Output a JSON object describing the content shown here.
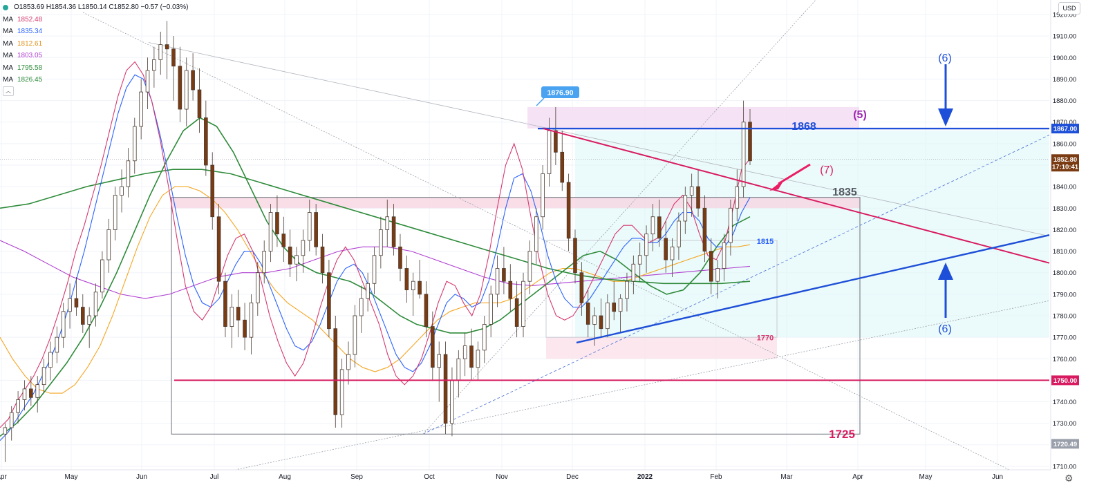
{
  "header": {
    "ohlc_text": "O1853.69 H1854.36 L1850.14 C1852.80 −0.57 (−0.03%)",
    "mas": [
      {
        "label": "MA",
        "value": "1852.48",
        "color": "#d5386f"
      },
      {
        "label": "MA",
        "value": "1835.34",
        "color": "#2962ff"
      },
      {
        "label": "MA",
        "value": "1812.61",
        "color": "#f5a623"
      },
      {
        "label": "MA",
        "value": "1803.05",
        "color": "#b03fd1"
      },
      {
        "label": "MA",
        "value": "1795.58",
        "color": "#2e8b3a"
      },
      {
        "label": "MA",
        "value": "1826.45",
        "color": "#2e8b3a"
      }
    ],
    "toggle_icon": "chevron-up-icon"
  },
  "currency_button": "USD",
  "settings_icon": "gear-icon",
  "chart_data": {
    "type": "candlestick",
    "instrument_currency": "USD",
    "y_axis": {
      "ticks": [
        1710,
        1720,
        1730,
        1740,
        1750,
        1760,
        1770,
        1780,
        1790,
        1800,
        1810,
        1820,
        1830,
        1840,
        1850,
        1860,
        1870,
        1880,
        1890,
        1900,
        1910,
        1920
      ],
      "tick_labels": [
        "1710.00",
        "1720.00",
        "1730.00",
        "1740.00",
        "1750.00",
        "1760.00",
        "1770.00",
        "1780.00",
        "1790.00",
        "1800.00",
        "1810.00",
        "1820.00",
        "1830.00",
        "1840.00",
        "1850.00",
        "1860.00",
        "1870.00",
        "1880.00",
        "1890.00",
        "1900.00",
        "1910.00",
        "1920.00"
      ],
      "range": [
        1707,
        1922
      ]
    },
    "x_axis": {
      "labels": [
        "Apr",
        "May",
        "Jun",
        "Jul",
        "Aug",
        "Sep",
        "Oct",
        "Nov",
        "Dec",
        "2022",
        "Feb",
        "Mar",
        "Apr",
        "May",
        "Jun"
      ]
    },
    "price_labels": [
      {
        "text": "1867.00",
        "value": 1867,
        "color": "#1e4fd8"
      },
      {
        "text": "1852.80",
        "value": 1852.8,
        "color": "#7a3b12"
      },
      {
        "text": "17:10:41",
        "value": 1849.3,
        "color": "#7a3b12"
      },
      {
        "text": "1750.00",
        "value": 1750,
        "color": "#d81b60"
      },
      {
        "text": "1720.49",
        "value": 1720.49,
        "color": "#9aa0ab"
      }
    ],
    "annotations": {
      "level_1868": "1868",
      "level_1835": "1835",
      "level_1815": "1815",
      "level_1770": "1770",
      "level_1725": "1725",
      "wave_5": "(5)",
      "wave_7": "(7)",
      "wave_6_top": "(6)",
      "wave_6_bottom": "(6)",
      "callout_high": "1876.90"
    },
    "horizontal_levels": [
      {
        "value": 1867,
        "color": "#1e4fd8"
      },
      {
        "value": 1750,
        "color": "#d81b60"
      }
    ],
    "candles": [
      [
        1725,
        1730,
        1712,
        1728
      ],
      [
        1728,
        1738,
        1722,
        1735
      ],
      [
        1735,
        1745,
        1730,
        1741
      ],
      [
        1741,
        1750,
        1736,
        1746
      ],
      [
        1746,
        1752,
        1738,
        1742
      ],
      [
        1742,
        1752,
        1735,
        1748
      ],
      [
        1748,
        1760,
        1744,
        1756
      ],
      [
        1756,
        1768,
        1750,
        1763
      ],
      [
        1763,
        1775,
        1758,
        1770
      ],
      [
        1770,
        1786,
        1765,
        1782
      ],
      [
        1782,
        1795,
        1774,
        1788
      ],
      [
        1788,
        1798,
        1780,
        1784
      ],
      [
        1784,
        1790,
        1772,
        1776
      ],
      [
        1776,
        1784,
        1765,
        1780
      ],
      [
        1780,
        1795,
        1775,
        1791
      ],
      [
        1791,
        1810,
        1788,
        1806
      ],
      [
        1806,
        1825,
        1800,
        1820
      ],
      [
        1820,
        1840,
        1815,
        1836
      ],
      [
        1836,
        1848,
        1828,
        1840
      ],
      [
        1840,
        1858,
        1835,
        1852
      ],
      [
        1852,
        1872,
        1846,
        1868
      ],
      [
        1868,
        1890,
        1862,
        1884
      ],
      [
        1884,
        1900,
        1876,
        1894
      ],
      [
        1894,
        1905,
        1886,
        1899
      ],
      [
        1899,
        1912,
        1892,
        1906
      ],
      [
        1906,
        1917,
        1890,
        1904
      ],
      [
        1904,
        1910,
        1880,
        1896
      ],
      [
        1896,
        1905,
        1870,
        1876
      ],
      [
        1876,
        1900,
        1868,
        1894
      ],
      [
        1894,
        1902,
        1880,
        1885
      ],
      [
        1885,
        1895,
        1865,
        1872
      ],
      [
        1872,
        1880,
        1845,
        1850
      ],
      [
        1850,
        1856,
        1820,
        1826
      ],
      [
        1826,
        1832,
        1790,
        1796
      ],
      [
        1796,
        1800,
        1770,
        1775
      ],
      [
        1775,
        1790,
        1765,
        1784
      ],
      [
        1784,
        1792,
        1770,
        1778
      ],
      [
        1778,
        1786,
        1764,
        1770
      ],
      [
        1770,
        1790,
        1762,
        1786
      ],
      [
        1786,
        1805,
        1780,
        1800
      ],
      [
        1800,
        1815,
        1795,
        1810
      ],
      [
        1810,
        1832,
        1805,
        1828
      ],
      [
        1828,
        1836,
        1812,
        1818
      ],
      [
        1818,
        1826,
        1805,
        1812
      ],
      [
        1812,
        1820,
        1798,
        1804
      ],
      [
        1804,
        1812,
        1796,
        1808
      ],
      [
        1808,
        1820,
        1800,
        1815
      ],
      [
        1815,
        1834,
        1810,
        1828
      ],
      [
        1828,
        1832,
        1808,
        1812
      ],
      [
        1812,
        1818,
        1795,
        1800
      ],
      [
        1800,
        1806,
        1770,
        1774
      ],
      [
        1774,
        1780,
        1728,
        1734
      ],
      [
        1734,
        1760,
        1728,
        1755
      ],
      [
        1755,
        1768,
        1748,
        1762
      ],
      [
        1762,
        1785,
        1756,
        1780
      ],
      [
        1780,
        1794,
        1772,
        1788
      ],
      [
        1788,
        1800,
        1782,
        1795
      ],
      [
        1795,
        1812,
        1790,
        1808
      ],
      [
        1808,
        1826,
        1802,
        1820
      ],
      [
        1820,
        1834,
        1812,
        1826
      ],
      [
        1826,
        1832,
        1808,
        1812
      ],
      [
        1812,
        1818,
        1796,
        1802
      ],
      [
        1802,
        1808,
        1786,
        1792
      ],
      [
        1792,
        1800,
        1780,
        1796
      ],
      [
        1796,
        1806,
        1788,
        1790
      ],
      [
        1790,
        1796,
        1770,
        1775
      ],
      [
        1775,
        1782,
        1750,
        1756
      ],
      [
        1756,
        1768,
        1740,
        1762
      ],
      [
        1762,
        1768,
        1725,
        1730
      ],
      [
        1730,
        1756,
        1724,
        1750
      ],
      [
        1750,
        1764,
        1742,
        1760
      ],
      [
        1760,
        1772,
        1752,
        1766
      ],
      [
        1766,
        1774,
        1750,
        1756
      ],
      [
        1756,
        1768,
        1750,
        1764
      ],
      [
        1764,
        1780,
        1758,
        1776
      ],
      [
        1776,
        1794,
        1770,
        1790
      ],
      [
        1790,
        1808,
        1784,
        1802
      ],
      [
        1802,
        1812,
        1790,
        1796
      ],
      [
        1796,
        1804,
        1782,
        1788
      ],
      [
        1788,
        1796,
        1770,
        1775
      ],
      [
        1775,
        1800,
        1770,
        1796
      ],
      [
        1796,
        1815,
        1790,
        1810
      ],
      [
        1810,
        1830,
        1804,
        1826
      ],
      [
        1826,
        1850,
        1820,
        1846
      ],
      [
        1846,
        1872,
        1840,
        1866
      ],
      [
        1866,
        1877,
        1850,
        1856
      ],
      [
        1856,
        1866,
        1838,
        1842
      ],
      [
        1842,
        1846,
        1810,
        1816
      ],
      [
        1816,
        1820,
        1795,
        1800
      ],
      [
        1800,
        1805,
        1780,
        1786
      ],
      [
        1786,
        1792,
        1770,
        1776
      ],
      [
        1776,
        1784,
        1766,
        1780
      ],
      [
        1780,
        1788,
        1770,
        1774
      ],
      [
        1774,
        1790,
        1770,
        1786
      ],
      [
        1786,
        1796,
        1778,
        1782
      ],
      [
        1782,
        1790,
        1772,
        1788
      ],
      [
        1788,
        1800,
        1782,
        1796
      ],
      [
        1796,
        1808,
        1790,
        1804
      ],
      [
        1804,
        1814,
        1796,
        1808
      ],
      [
        1808,
        1822,
        1800,
        1818
      ],
      [
        1818,
        1832,
        1810,
        1826
      ],
      [
        1826,
        1834,
        1812,
        1816
      ],
      [
        1816,
        1824,
        1800,
        1806
      ],
      [
        1806,
        1816,
        1798,
        1812
      ],
      [
        1812,
        1828,
        1806,
        1824
      ],
      [
        1824,
        1840,
        1818,
        1836
      ],
      [
        1836,
        1846,
        1826,
        1840
      ],
      [
        1840,
        1848,
        1826,
        1830
      ],
      [
        1830,
        1836,
        1805,
        1810
      ],
      [
        1810,
        1816,
        1790,
        1796
      ],
      [
        1796,
        1806,
        1788,
        1802
      ],
      [
        1802,
        1818,
        1796,
        1814
      ],
      [
        1814,
        1834,
        1808,
        1830
      ],
      [
        1830,
        1848,
        1824,
        1840
      ],
      [
        1840,
        1880,
        1835,
        1870
      ],
      [
        1870,
        1876,
        1850,
        1852
      ]
    ],
    "moving_averages": {
      "ma_fast": {
        "color": "#d5386f",
        "values": [
          1728,
          1732,
          1740,
          1746,
          1752,
          1760,
          1770,
          1782,
          1795,
          1810,
          1822,
          1836,
          1850,
          1866,
          1882,
          1894,
          1898,
          1892,
          1880,
          1862,
          1840,
          1816,
          1794,
          1782,
          1778,
          1784,
          1796,
          1808,
          1816,
          1818,
          1810,
          1796,
          1780,
          1768,
          1758,
          1752,
          1758,
          1770,
          1784,
          1796,
          1806,
          1812,
          1806,
          1796,
          1786,
          1776,
          1762,
          1752,
          1748,
          1752,
          1760,
          1772,
          1786,
          1796,
          1794,
          1786,
          1780,
          1790,
          1808,
          1830,
          1850,
          1860,
          1848,
          1826,
          1806,
          1790,
          1780,
          1778,
          1780,
          1786,
          1794,
          1802,
          1810,
          1818,
          1822,
          1822,
          1818,
          1814,
          1816,
          1824,
          1832,
          1836,
          1830,
          1818,
          1808,
          1806,
          1814,
          1830,
          1848,
          1853
        ]
      },
      "ma_blue": {
        "color": "#2962ff",
        "values": [
          1722,
          1726,
          1732,
          1738,
          1744,
          1752,
          1760,
          1770,
          1782,
          1796,
          1810,
          1826,
          1842,
          1858,
          1874,
          1886,
          1892,
          1890,
          1880,
          1864,
          1846,
          1826,
          1808,
          1794,
          1786,
          1784,
          1788,
          1796,
          1804,
          1810,
          1810,
          1804,
          1794,
          1784,
          1774,
          1766,
          1764,
          1768,
          1776,
          1786,
          1796,
          1802,
          1804,
          1800,
          1792,
          1782,
          1772,
          1762,
          1756,
          1754,
          1758,
          1766,
          1776,
          1786,
          1790,
          1788,
          1784,
          1786,
          1796,
          1812,
          1830,
          1844,
          1846,
          1838,
          1824,
          1808,
          1796,
          1788,
          1784,
          1784,
          1788,
          1794,
          1800,
          1806,
          1812,
          1816,
          1816,
          1814,
          1814,
          1818,
          1824,
          1828,
          1828,
          1824,
          1816,
          1812,
          1812,
          1818,
          1828,
          1835
        ]
      },
      "ma_orange": {
        "color": "#f5a623",
        "values": [
          1770,
          1760,
          1752,
          1746,
          1744,
          1744,
          1748,
          1756,
          1766,
          1780,
          1796,
          1812,
          1826,
          1836,
          1840,
          1840,
          1838,
          1834,
          1828,
          1820,
          1810,
          1800,
          1792,
          1786,
          1782,
          1778,
          1772,
          1766,
          1760,
          1756,
          1754,
          1756,
          1760,
          1766,
          1772,
          1778,
          1782,
          1784,
          1786,
          1786,
          1786,
          1788,
          1792,
          1796,
          1800,
          1802,
          1802,
          1800,
          1798,
          1796,
          1796,
          1798,
          1800,
          1802,
          1804,
          1806,
          1808,
          1810,
          1812,
          1812,
          1813
        ]
      },
      "ma_purple": {
        "color": "#b03fd1",
        "values": [
          1815,
          1810,
          1804,
          1798,
          1794,
          1790,
          1788,
          1790,
          1794,
          1798,
          1800,
          1800,
          1802,
          1806,
          1810,
          1812,
          1812,
          1810,
          1806,
          1802,
          1798,
          1795,
          1794,
          1795,
          1796,
          1797,
          1798,
          1799,
          1800,
          1801,
          1802,
          1803
        ]
      },
      "ma_green_slow": {
        "color": "#2e8b3a",
        "values": [
          1830,
          1832,
          1836,
          1840,
          1843,
          1846,
          1848,
          1848,
          1846,
          1842,
          1838,
          1834,
          1830,
          1826,
          1822,
          1818,
          1814,
          1810,
          1806,
          1802,
          1799,
          1797,
          1796,
          1795,
          1795,
          1795,
          1796
        ]
      },
      "ma_green_mid": {
        "color": "#2e8b3a",
        "values": [
          1724,
          1730,
          1738,
          1748,
          1758,
          1770,
          1784,
          1800,
          1818,
          1836,
          1852,
          1866,
          1872,
          1868,
          1856,
          1840,
          1824,
          1812,
          1804,
          1800,
          1798,
          1796,
          1792,
          1786,
          1780,
          1776,
          1774,
          1772,
          1772,
          1774,
          1778,
          1784,
          1790,
          1796,
          1802,
          1808,
          1810,
          1806,
          1800,
          1794,
          1790,
          1792,
          1800,
          1812,
          1822,
          1826
        ]
      }
    }
  }
}
